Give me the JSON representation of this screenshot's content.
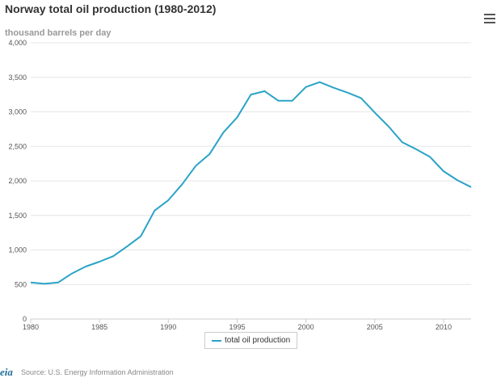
{
  "title": "Norway total oil production (1980-2012)",
  "ylabel": "thousand barrels per day",
  "menu_icon": "hamburger-menu-icon",
  "legend": {
    "label": "total oil production"
  },
  "source": "Source: U.S. Energy Information Administration",
  "logo_text": "eia",
  "colors": {
    "line": "#2aa3c7",
    "grid": "#e6e6e6",
    "axis": "#cccccc"
  },
  "chart_data": {
    "type": "line",
    "title": "Norway total oil production (1980-2012)",
    "ylabel": "thousand barrels per day",
    "xlabel": "",
    "xlim": [
      1980,
      2012
    ],
    "ylim": [
      0,
      4000
    ],
    "grid": true,
    "legend_position": "bottom-center",
    "x_ticks": [
      1980,
      1985,
      1990,
      1995,
      2000,
      2005,
      2010
    ],
    "y_ticks": [
      0,
      500,
      1000,
      1500,
      2000,
      2500,
      3000,
      3500,
      4000
    ],
    "y_tick_labels": [
      "0",
      "500",
      "1,000",
      "1,500",
      "2,000",
      "2,500",
      "3,000",
      "3,500",
      "4,000"
    ],
    "series": [
      {
        "name": "total oil production",
        "x": [
          1980,
          1981,
          1982,
          1983,
          1984,
          1985,
          1986,
          1987,
          1988,
          1989,
          1990,
          1991,
          1992,
          1993,
          1994,
          1995,
          1996,
          1997,
          1998,
          1999,
          2000,
          2001,
          2002,
          2003,
          2004,
          2005,
          2006,
          2007,
          2008,
          2009,
          2010,
          2011,
          2012
        ],
        "values": [
          530,
          510,
          530,
          660,
          760,
          830,
          910,
          1050,
          1200,
          1570,
          1720,
          1950,
          2220,
          2390,
          2700,
          2920,
          3250,
          3300,
          3160,
          3160,
          3360,
          3430,
          3350,
          3280,
          3200,
          2990,
          2790,
          2560,
          2460,
          2350,
          2140,
          2010,
          1910
        ]
      }
    ]
  }
}
